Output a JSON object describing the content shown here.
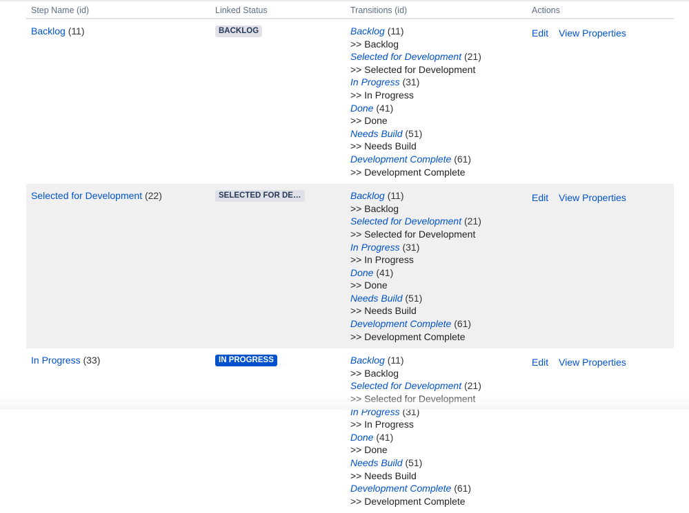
{
  "headers": [
    "Step Name (id)",
    "Linked Status",
    "Transitions (id)",
    "Actions"
  ],
  "transitions": [
    {
      "name": "Backlog",
      "id": "(11)",
      "target": ">> Backlog"
    },
    {
      "name": "Selected for Development",
      "id": "(21)",
      "target": ">> Selected for Development"
    },
    {
      "name": "In Progress",
      "id": "(31)",
      "target": ">> In Progress"
    },
    {
      "name": "Done",
      "id": "(41)",
      "target": ">> Done"
    },
    {
      "name": "Needs Build",
      "id": "(51)",
      "target": ">> Needs Build"
    },
    {
      "name": "Development Complete",
      "id": "(61)",
      "target": ">> Development Complete"
    }
  ],
  "rows": [
    {
      "name": "Backlog",
      "id": "(11)",
      "status": "BACKLOG",
      "status_color": "#dfe1e6"
    },
    {
      "name": "Selected for Development",
      "id": "(22)",
      "status": "SELECTED FOR DEVELOPMENT",
      "status_color": "#dfe1e6"
    },
    {
      "name": "In Progress",
      "id": "(33)",
      "status": "IN PROGRESS",
      "status_color": "#0052cc"
    }
  ],
  "actions": {
    "edit": "Edit",
    "view": "View Properties"
  }
}
